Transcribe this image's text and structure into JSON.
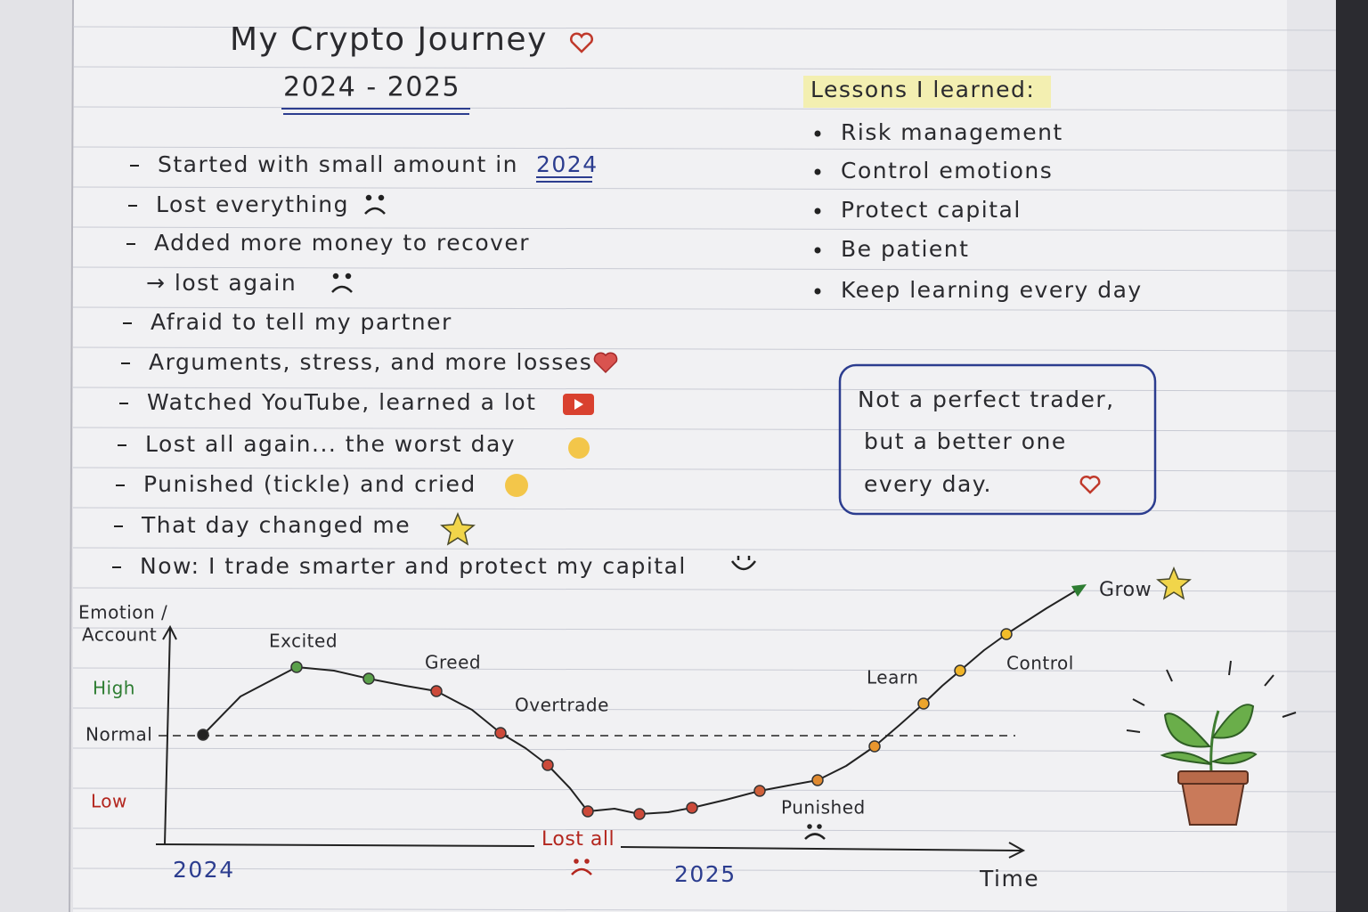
{
  "title": "My Crypto Journey",
  "years": "2024 - 2025",
  "story": [
    {
      "text": "Started with small amount in",
      "highlight": "2024"
    },
    {
      "text": "Lost everything"
    },
    {
      "text": "Added more money to recover"
    },
    {
      "text": "→ lost again"
    },
    {
      "text": "Afraid to tell my partner"
    },
    {
      "text": "Arguments, stress, and more losses"
    },
    {
      "text": "Watched YouTube, learned a lot"
    },
    {
      "text": "Lost all again... the worst day"
    },
    {
      "text": "Punished (tickle) and cried"
    },
    {
      "text": "That day changed me"
    },
    {
      "text": "Now: I trade smarter and protect my capital"
    }
  ],
  "lessons": {
    "title": "Lessons I learned:",
    "items": [
      "Risk management",
      "Control emotions",
      "Protect capital",
      "Be patient",
      "Keep learning every day"
    ]
  },
  "quote": [
    "Not a perfect trader,",
    "but a better one",
    "every day."
  ],
  "chart": {
    "y_label": [
      "Emotion /",
      "Account"
    ],
    "levels": [
      "High",
      "Normal",
      "Low"
    ],
    "x_label": "Time",
    "years": [
      "2024",
      "2025"
    ],
    "annotations": [
      "Excited",
      "Greed",
      "Overtrade",
      "Lost all",
      "Punished",
      "Learn",
      "Control",
      "Grow"
    ]
  }
}
